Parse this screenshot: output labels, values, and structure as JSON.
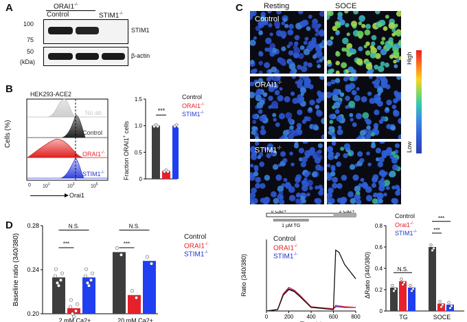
{
  "panels": {
    "A": "A",
    "B": "B",
    "C": "C",
    "D": "D"
  },
  "panelA": {
    "header_group": "ORAI1",
    "header_group_sup": "-/-",
    "lanes": [
      {
        "label": "Control",
        "sup": ""
      },
      {
        "label": "STIM1",
        "sup": "-/-"
      }
    ],
    "mw_top": [
      "100",
      "75"
    ],
    "mw_bottom": [
      "50",
      "(kDa)"
    ],
    "bands": [
      "STIM1",
      "β-actin"
    ]
  },
  "panelB": {
    "cell_line": "HEK293-ACE2",
    "ylabel": "Cells (%)",
    "xlabel": "Orai1",
    "xticks": [
      {
        "base": "0",
        "exp": ""
      },
      {
        "base": "10",
        "exp": "1"
      },
      {
        "base": "10",
        "exp": "3"
      },
      {
        "base": "10",
        "exp": "5"
      }
    ],
    "histogram_labels": [
      {
        "text": "No ab",
        "color": "#c8c8c8"
      },
      {
        "text": "Control",
        "color": "#333333"
      },
      {
        "text": "ORAI1",
        "sup": "-/-",
        "color": "#e8202a"
      },
      {
        "text": "STIM1",
        "sup": "-/-",
        "color": "#2233cc"
      }
    ],
    "bar_ylabel": "Fraction ORAI1",
    "bar_ylabel_sup": "+",
    "bar_ylabel_suffix": " cells",
    "bar_yticks": [
      "0",
      "0.5",
      "1.0",
      "1.5"
    ],
    "significance": "***",
    "legend": [
      {
        "text": "Control",
        "color": "#111111"
      },
      {
        "text": "ORAI1",
        "sup": "-/-",
        "color": "#e8202a"
      },
      {
        "text": "STIM1",
        "sup": "-/-",
        "color": "#2233cc"
      }
    ]
  },
  "panelC": {
    "col_headers": [
      "Resting",
      "SOCE"
    ],
    "row_labels": [
      {
        "text": "Control",
        "sup": ""
      },
      {
        "text": "ORAI1",
        "sup": "-/-"
      },
      {
        "text": "STIM1",
        "sup": "-/-"
      }
    ],
    "scale_high": "High",
    "scale_low": "Low",
    "trace_protocol": [
      {
        "text": "0",
        "sup": "",
        "suffix": " Ca",
        "sup2": "2+"
      },
      {
        "text": "2",
        "sup": "",
        "suffix": " Ca",
        "sup2": "2+"
      }
    ],
    "trace_drug": "1 µM TG",
    "trace_ylabel": "Ratio (340/380)",
    "trace_xlabel": "Time (s)",
    "trace_xticks": [
      "0",
      "200",
      "400",
      "600",
      "800"
    ],
    "trace_legend": [
      {
        "text": "Control",
        "color": "#111111"
      },
      {
        "text": "ORAI1",
        "sup": "-/-",
        "color": "#e8202a"
      },
      {
        "text": "STIM1",
        "sup": "-/-",
        "color": "#2233cc"
      }
    ],
    "bar_ylabel": "ΔRatio (340/380)",
    "bar_yticks": [
      "0",
      "0.2",
      "0.4",
      "0.6",
      "0.8"
    ],
    "bar_groups": [
      "TG",
      "SOCE"
    ],
    "bar_legend": [
      {
        "text": "Control",
        "color": "#111111"
      },
      {
        "text": "Orai1",
        "sup": "-/-",
        "color": "#e8202a"
      },
      {
        "text": "STIM1",
        "sup": "-/-",
        "color": "#2233cc"
      }
    ],
    "bar_sig": [
      "N.S.",
      "***",
      "***"
    ]
  },
  "panelD": {
    "ylabel": "Baseline ratio (340/380)",
    "yticks": [
      "0.20",
      "0.24",
      "0.28"
    ],
    "groups": [
      {
        "text": "2 mM Ca",
        "sup": "2+"
      },
      {
        "text": "20 mM Ca",
        "sup": "2+"
      }
    ],
    "sig": [
      "N.S.",
      "***",
      "N.S.",
      "***"
    ],
    "legend": [
      {
        "text": "Control",
        "color": "#111111"
      },
      {
        "text": "ORAI1",
        "sup": "-/-",
        "color": "#e8202a"
      },
      {
        "text": "STIM1",
        "sup": "-/-",
        "color": "#2233cc"
      }
    ]
  },
  "colors": {
    "control": "#3d3d3d",
    "orai1": "#e8202a",
    "stim1": "#1f3ff0"
  },
  "chart_data": [
    {
      "type": "bar",
      "title": "",
      "ylabel": "Fraction ORAI1+ cells",
      "categories": [
        "Control",
        "ORAI1-/-",
        "STIM1-/-"
      ],
      "values": [
        1.0,
        0.15,
        1.0
      ],
      "ylim": [
        0,
        1.5
      ]
    },
    {
      "type": "line",
      "xlabel": "Time (s)",
      "ylabel": "Ratio (340/380)",
      "x": [
        0,
        100,
        150,
        200,
        250,
        300,
        400,
        600,
        620,
        650,
        700,
        800
      ],
      "series": [
        {
          "name": "Control",
          "values": [
            0.0,
            0.02,
            0.22,
            0.3,
            0.27,
            0.2,
            0.05,
            0.02,
            0.85,
            0.82,
            0.65,
            0.45
          ]
        },
        {
          "name": "ORAI1-/-",
          "values": [
            0.0,
            0.02,
            0.24,
            0.33,
            0.29,
            0.22,
            0.06,
            0.03,
            0.08,
            0.07,
            0.06,
            0.05
          ]
        },
        {
          "name": "STIM1-/-",
          "values": [
            0.0,
            0.02,
            0.23,
            0.31,
            0.28,
            0.21,
            0.05,
            0.03,
            0.06,
            0.06,
            0.05,
            0.05
          ]
        }
      ],
      "xlim": [
        0,
        800
      ]
    },
    {
      "type": "bar",
      "ylabel": "ΔRatio (340/380)",
      "categories": [
        "TG",
        "SOCE"
      ],
      "series": [
        {
          "name": "Control",
          "values": [
            0.22,
            0.6
          ]
        },
        {
          "name": "Orai1-/-",
          "values": [
            0.28,
            0.07
          ]
        },
        {
          "name": "STIM1-/-",
          "values": [
            0.22,
            0.06
          ]
        }
      ],
      "ylim": [
        0,
        0.8
      ]
    },
    {
      "type": "bar",
      "ylabel": "Baseline ratio (340/380)",
      "categories": [
        "2 mM Ca2+",
        "20 mM Ca2+"
      ],
      "series": [
        {
          "name": "Control",
          "values": [
            0.233,
            0.256
          ]
        },
        {
          "name": "ORAI1-/-",
          "values": [
            0.205,
            0.217
          ]
        },
        {
          "name": "STIM1-/-",
          "values": [
            0.233,
            0.248
          ]
        }
      ],
      "ylim": [
        0.2,
        0.28
      ]
    }
  ]
}
